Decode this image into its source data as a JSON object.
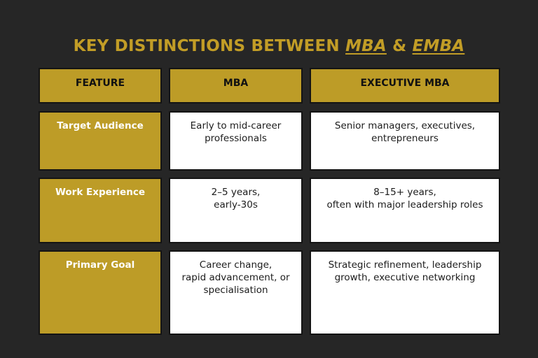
{
  "title": {
    "prefix": "KEY DISTINCTIONS BETWEEN ",
    "mba": "MBA",
    "amp": " & ",
    "emba": "EMBA"
  },
  "colors": {
    "background": "#262626",
    "accent_gold": "#bd9c27",
    "title_gold": "#c29d26",
    "cell_white": "#ffffff"
  },
  "table": {
    "headers": [
      "FEATURE",
      "MBA",
      "EXECUTIVE MBA"
    ],
    "rows": [
      {
        "feature": "Target Audience",
        "mba": [
          "Early to mid-career",
          "professionals"
        ],
        "emba": [
          "Senior managers, executives,",
          "entrepreneurs"
        ]
      },
      {
        "feature": "Work Experience",
        "mba": [
          "2–5 years,",
          "early-30s"
        ],
        "emba": [
          "8–15+ years,",
          "often with major leadership roles"
        ]
      },
      {
        "feature": "Primary Goal",
        "mba": [
          "Career change,",
          "rapid advancement, or",
          "specialisation"
        ],
        "emba": [
          "Strategic refinement, leadership",
          "growth, executive networking"
        ]
      }
    ]
  }
}
